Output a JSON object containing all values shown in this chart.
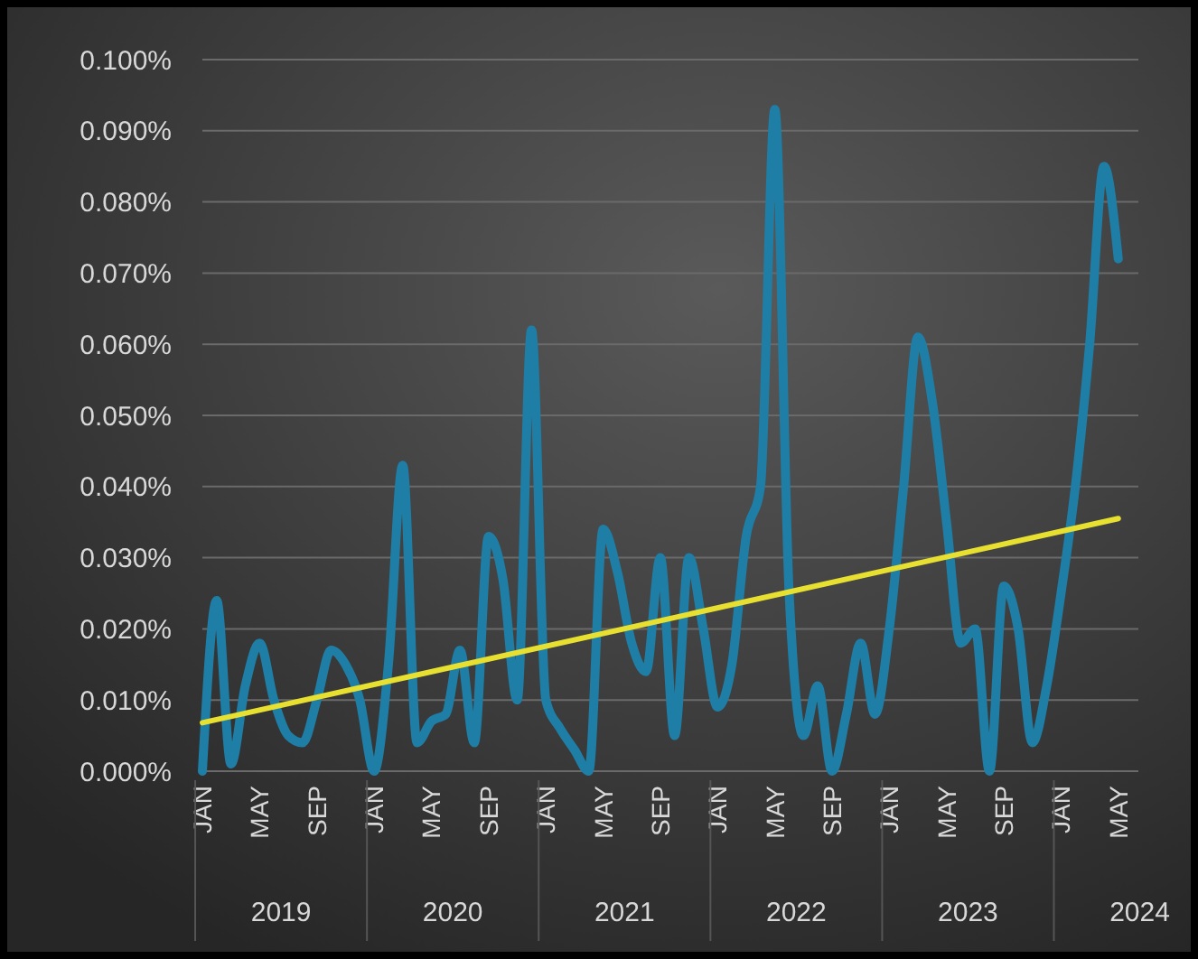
{
  "chart_data": {
    "type": "line",
    "categories": [
      "JAN",
      null,
      null,
      null,
      "MAY",
      null,
      null,
      null,
      "SEP",
      null,
      null,
      null,
      "JAN",
      null,
      null,
      null,
      "MAY",
      null,
      null,
      null,
      "SEP",
      null,
      null,
      null,
      "JAN",
      null,
      null,
      null,
      "MAY",
      null,
      null,
      null,
      "SEP",
      null,
      null,
      null,
      "JAN",
      null,
      null,
      null,
      "MAY",
      null,
      null,
      null,
      "SEP",
      null,
      null,
      null,
      "JAN",
      null,
      null,
      null,
      "MAY",
      null,
      null,
      null,
      "SEP",
      null,
      null,
      null,
      "JAN",
      null,
      null,
      null,
      "MAY"
    ],
    "series": [
      {
        "color": "#1f7ea6",
        "values": [
          0.0,
          0.024,
          0.001,
          0.012,
          0.018,
          0.01,
          0.005,
          0.004,
          0.01,
          0.017,
          0.015,
          0.01,
          0.0,
          0.015,
          0.043,
          0.004,
          0.007,
          0.008,
          0.017,
          0.004,
          0.033,
          0.027,
          0.01,
          0.062,
          0.01,
          0.006,
          0.003,
          0.0,
          0.034,
          0.028,
          0.018,
          0.014,
          0.03,
          0.005,
          0.03,
          0.02,
          0.009,
          0.015,
          0.033,
          0.04,
          0.093,
          0.025,
          0.005,
          0.012,
          0.0,
          0.008,
          0.018,
          0.008,
          0.02,
          0.04,
          0.061,
          0.052,
          0.035,
          0.018,
          0.02,
          0.0,
          0.026,
          0.02,
          0.004,
          0.012,
          0.025,
          0.04,
          0.06,
          0.085,
          0.072
        ]
      },
      {
        "type": "line",
        "color": "#e8e030",
        "values": [
          0.0068,
          null,
          null,
          null,
          null,
          null,
          null,
          null,
          null,
          null,
          null,
          null,
          null,
          null,
          null,
          null,
          null,
          null,
          null,
          null,
          null,
          null,
          null,
          null,
          null,
          null,
          null,
          null,
          null,
          null,
          null,
          null,
          null,
          null,
          null,
          null,
          null,
          null,
          null,
          null,
          null,
          null,
          null,
          null,
          null,
          null,
          null,
          null,
          null,
          null,
          null,
          null,
          null,
          null,
          null,
          null,
          null,
          null,
          null,
          null,
          null,
          null,
          null,
          null,
          0.0355
        ]
      }
    ],
    "ylim": [
      0,
      0.1
    ],
    "yticks": [
      {
        "value": 0,
        "label": "0.000%"
      },
      {
        "value": 0.01,
        "label": "0.010%"
      },
      {
        "value": 0.02,
        "label": "0.020%"
      },
      {
        "value": 0.03,
        "label": "0.030%"
      },
      {
        "value": 0.04,
        "label": "0.040%"
      },
      {
        "value": 0.05,
        "label": "0.050%"
      },
      {
        "value": 0.06,
        "label": "0.060%"
      },
      {
        "value": 0.07,
        "label": "0.070%"
      },
      {
        "value": 0.08,
        "label": "0.080%"
      },
      {
        "value": 0.09,
        "label": "0.090%"
      },
      {
        "value": 0.1,
        "label": "0.100%"
      }
    ],
    "grid": "y",
    "annotations": [
      "2019",
      "2020",
      "2021",
      "2022",
      "2023",
      "2024"
    ]
  }
}
